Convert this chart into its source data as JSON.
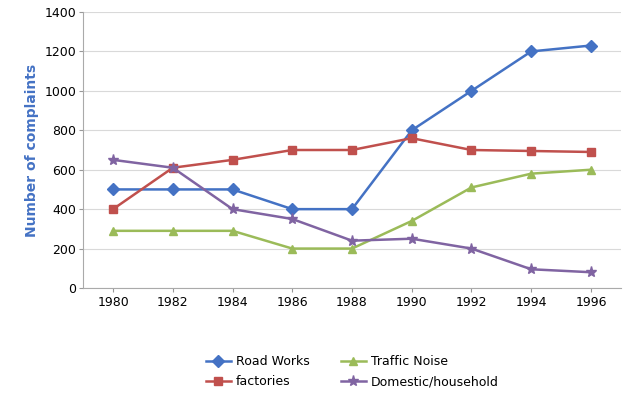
{
  "years": [
    1980,
    1982,
    1984,
    1986,
    1988,
    1990,
    1992,
    1994,
    1996
  ],
  "road_works": [
    500,
    500,
    500,
    400,
    400,
    800,
    1000,
    1200,
    1230
  ],
  "factories": [
    400,
    610,
    650,
    700,
    700,
    760,
    700,
    695,
    690
  ],
  "traffic_noise": [
    290,
    290,
    290,
    200,
    200,
    340,
    510,
    580,
    600
  ],
  "domestic": [
    650,
    610,
    400,
    350,
    240,
    250,
    200,
    95,
    80
  ],
  "series_labels": [
    "Road Works",
    "factories",
    "Traffic Noise",
    "Domestic/household"
  ],
  "series_colors": [
    "#4472C4",
    "#C0504D",
    "#9BBB59",
    "#8064A2"
  ],
  "markers": [
    "D",
    "s",
    "^",
    "*"
  ],
  "ylabel": "Number of complaints",
  "ylabel_color_blue": "#4472C4",
  "ylabel_color_orange": "#E36C09",
  "ylim": [
    0,
    1400
  ],
  "yticks": [
    0,
    200,
    400,
    600,
    800,
    1000,
    1200,
    1400
  ],
  "xlim": [
    1979,
    1997
  ],
  "xticks": [
    1980,
    1982,
    1984,
    1986,
    1988,
    1990,
    1992,
    1994,
    1996
  ],
  "bg_color": "#FFFFFF",
  "grid_color": "#D9D9D9",
  "linewidth": 1.8,
  "markersize": 6
}
